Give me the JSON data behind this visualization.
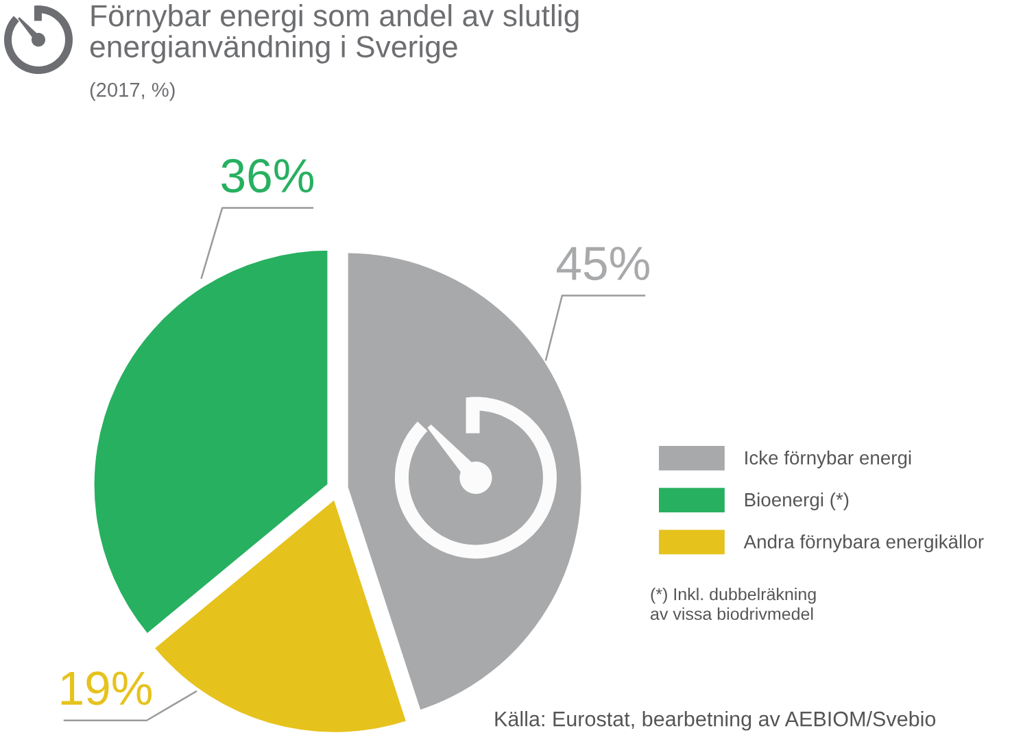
{
  "chart_data": {
    "type": "pie",
    "title": "Förnybar energi som andel av slutlig\nenergianvändning i Sverige",
    "subtitle": "(2017, %)",
    "categories": [
      "Icke förnybar energi",
      "Bioenergi (*)",
      "Andra förnybara energikällor"
    ],
    "values": [
      45,
      36,
      19
    ],
    "colors": [
      "#a8a9ab",
      "#27b060",
      "#e6c21d"
    ],
    "value_labels": [
      "45%",
      "36%",
      "19%"
    ],
    "legend": "right",
    "annotations": [
      "(*) Inkl. dubbelräkning\nav vissa biodrivmedel",
      "Källa: Eurostat, bearbetning av AEBIOM/Svebio"
    ]
  }
}
